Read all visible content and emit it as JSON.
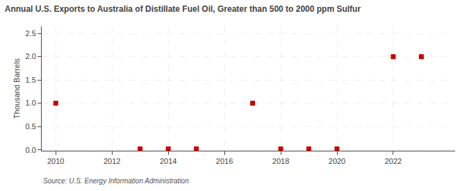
{
  "chart_data": {
    "type": "scatter",
    "title": "Annual U.S. Exports to Australia of Distillate Fuel Oil, Greater than 500 to 2000 ppm Sulfur",
    "y_label": "Thousand Barrels",
    "annotations": [
      "Source: U.S. Energy Information Administration"
    ],
    "x": [
      2010,
      2013,
      2014,
      2015,
      2017,
      2018,
      2019,
      2020,
      2022,
      2023
    ],
    "values": [
      1.0,
      0.02,
      0.02,
      0.02,
      1.0,
      0.02,
      0.02,
      0.02,
      2.0,
      2.0
    ],
    "color": "#cc0000",
    "marker": "square",
    "xlim": [
      2009.5,
      2024.2
    ],
    "xticks": [
      2010,
      2012,
      2014,
      2016,
      2018,
      2020,
      2022
    ],
    "ylim": [
      -0.02,
      2.65
    ],
    "yticks": [
      {
        "value": 0,
        "label": "0.0"
      },
      0.5,
      {
        "value": 1,
        "label": "1.0"
      },
      1.5,
      {
        "value": 2,
        "label": "2.0"
      },
      2.5
    ],
    "grid": true
  }
}
